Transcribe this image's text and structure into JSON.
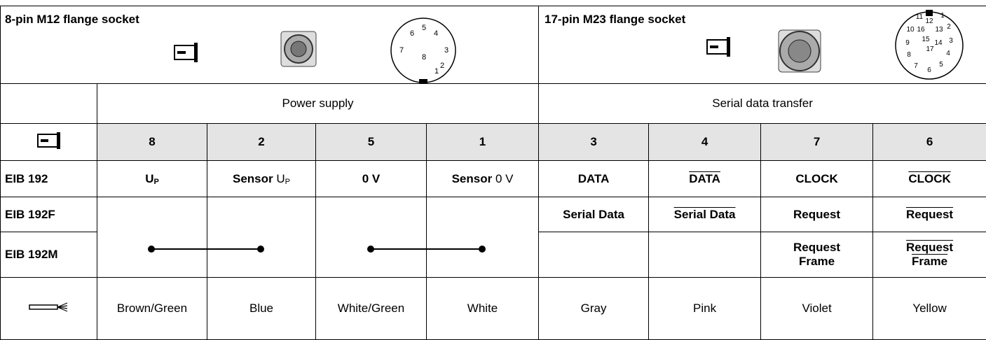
{
  "header": {
    "left_title": "8-pin M12 flange socket",
    "left_pins": [
      "1",
      "2",
      "3",
      "4",
      "5",
      "6",
      "7",
      "8"
    ],
    "right_title": "17-pin M23 flange socket",
    "right_pins": [
      "1",
      "2",
      "3",
      "4",
      "5",
      "6",
      "7",
      "8",
      "9",
      "10",
      "11",
      "12",
      "13",
      "14",
      "15",
      "16",
      "17"
    ]
  },
  "groups": [
    "Power supply",
    "Serial data transfer"
  ],
  "pins": [
    "8",
    "2",
    "5",
    "1",
    "3",
    "4",
    "7",
    "6"
  ],
  "rows": [
    {
      "label": "EIB 192",
      "cells": [
        {
          "main": "U",
          "sub": "P"
        },
        {
          "bold": "Sensor",
          "main": "U",
          "sub": "P"
        },
        {
          "main": "0 V"
        },
        {
          "bold": "Sensor",
          "main": "0 V"
        },
        "DATA",
        "DATA",
        "CLOCK",
        "CLOCK"
      ]
    },
    {
      "label": "EIB 192F",
      "cells": [
        "Serial Data",
        "Serial Data",
        "Request",
        "Request"
      ]
    },
    {
      "label": "EIB 192M",
      "cells": [
        [
          "Request",
          "Frame"
        ],
        [
          "Request",
          "Frame"
        ]
      ]
    }
  ],
  "colors": [
    "Brown/Green",
    "Blue",
    "White/Green",
    "White",
    "Gray",
    "Pink",
    "Violet",
    "Yellow"
  ]
}
